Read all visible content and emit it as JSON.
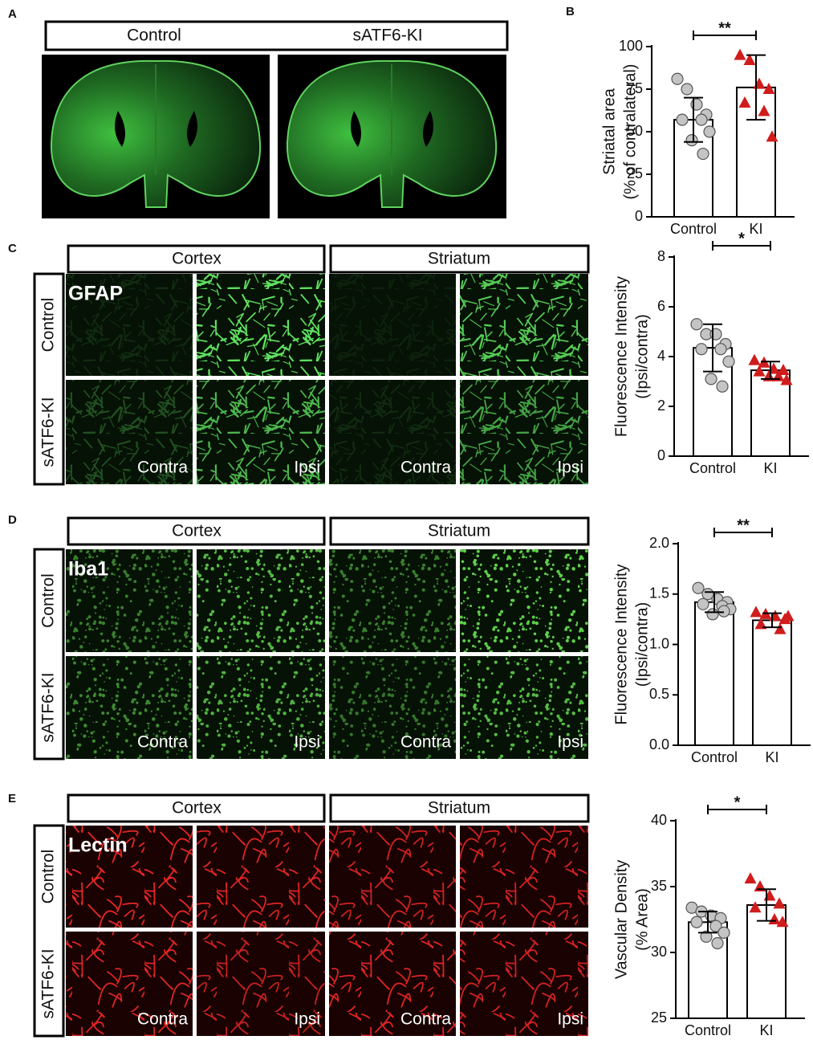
{
  "panel_labels": [
    "A",
    "B",
    "C",
    "D",
    "E"
  ],
  "panel_a": {
    "headers": [
      "Control",
      "sATF6-KI"
    ]
  },
  "panel_c": {
    "headers": [
      "Cortex",
      "Striatum"
    ],
    "rows": [
      "Control",
      "sATF6-KI"
    ],
    "stain": "GFAP",
    "image_labels": [
      "Contra",
      "Ipsi",
      "Contra",
      "Ipsi"
    ]
  },
  "panel_d": {
    "headers": [
      "Cortex",
      "Striatum"
    ],
    "rows": [
      "Control",
      "sATF6-KI"
    ],
    "stain": "Iba1",
    "image_labels": [
      "Contra",
      "Ipsi",
      "Contra",
      "Ipsi"
    ]
  },
  "panel_e": {
    "headers": [
      "Cortex",
      "Striatum"
    ],
    "rows": [
      "Control",
      "sATF6-KI"
    ],
    "stain": "Lectin",
    "image_labels": [
      "Contra",
      "Ipsi",
      "Contra",
      "Ipsi"
    ]
  },
  "chart_data": [
    {
      "type": "bar",
      "ylabel": [
        "Striatal area",
        "(% of contralateral)"
      ],
      "categories": [
        "Control",
        "KI"
      ],
      "values": [
        57,
        76
      ],
      "errors": [
        13,
        19
      ],
      "points": [
        [
          81,
          75,
          66,
          60,
          57,
          57,
          50,
          45,
          37
        ],
        [
          95,
          92,
          78,
          75,
          67,
          62,
          47
        ]
      ],
      "bar_color": "#ffffff",
      "point_colors": [
        "#c4c4c4",
        "#d01c1c"
      ],
      "significance": "**",
      "ylim": [
        0,
        100
      ],
      "yticks": [
        0,
        25,
        50,
        75,
        100
      ]
    },
    {
      "type": "bar",
      "ylabel": [
        "Fluorescence Intensity",
        "(Ipsi/contra)"
      ],
      "categories": [
        "Control",
        "KI"
      ],
      "values": [
        4.35,
        3.45
      ],
      "errors": [
        0.95,
        0.35
      ],
      "points": [
        [
          5.3,
          4.9,
          4.9,
          4.5,
          4.3,
          4.3,
          3.8,
          3.1,
          2.8
        ],
        [
          3.85,
          3.75,
          3.5,
          3.45,
          3.4,
          3.2,
          3.05,
          3.2
        ]
      ],
      "bar_color": "#ffffff",
      "point_colors": [
        "#c4c4c4",
        "#d01c1c"
      ],
      "significance": "*",
      "ylim": [
        0,
        8
      ],
      "yticks": [
        0,
        2,
        4,
        6,
        8
      ]
    },
    {
      "type": "bar",
      "ylabel": [
        "Fluorescence Intensity",
        "(Ipsi/contra)"
      ],
      "categories": [
        "Control",
        "KI"
      ],
      "values": [
        1.42,
        1.24
      ],
      "errors": [
        0.1,
        0.07
      ],
      "points": [
        [
          1.56,
          1.5,
          1.45,
          1.42,
          1.4,
          1.38,
          1.35,
          1.3,
          1.33
        ],
        [
          1.32,
          1.3,
          1.28,
          1.25,
          1.2,
          1.15,
          1.28
        ]
      ],
      "bar_color": "#ffffff",
      "point_colors": [
        "#c4c4c4",
        "#d01c1c"
      ],
      "significance": "**",
      "ylim": [
        0,
        2
      ],
      "yticks": [
        {
          "value": 0,
          "label": "0.0"
        },
        0.5,
        {
          "value": 1,
          "label": "1.0"
        },
        1.5,
        {
          "value": 2,
          "label": "2.0"
        }
      ]
    },
    {
      "type": "bar",
      "ylabel": [
        "Vascular Density",
        "(% Area)"
      ],
      "categories": [
        "Control",
        "KI"
      ],
      "values": [
        32.3,
        33.6
      ],
      "errors": [
        0.8,
        1.2
      ],
      "points": [
        [
          33.4,
          33.1,
          32.8,
          32.6,
          32.3,
          32.0,
          31.5,
          31.2,
          30.7
        ],
        [
          35.6,
          35.0,
          34.3,
          33.7,
          33.4,
          32.5,
          32.3
        ]
      ],
      "bar_color": "#ffffff",
      "point_colors": [
        "#c4c4c4",
        "#d01c1c"
      ],
      "significance": "*",
      "ylim": [
        25,
        40
      ],
      "yticks": [
        25,
        30,
        35,
        40
      ]
    }
  ]
}
